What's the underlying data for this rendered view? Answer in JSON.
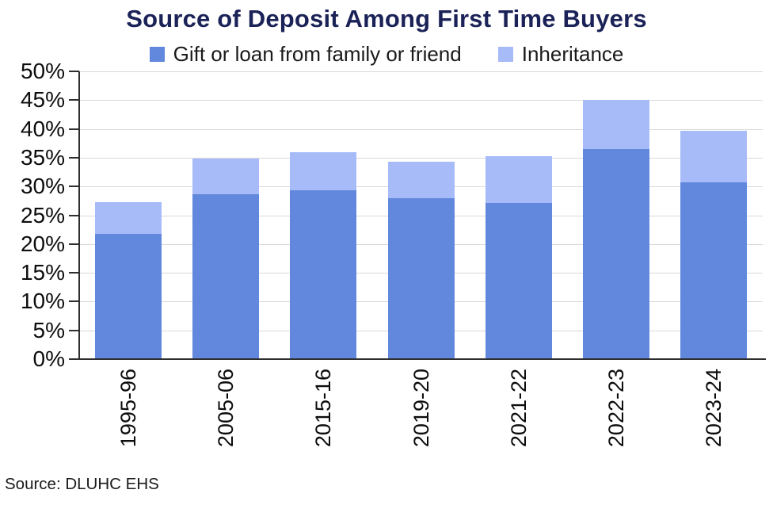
{
  "title": "Source of Deposit Among First Time Buyers",
  "source_note": "Source: DLUHC EHS",
  "colors": {
    "title_text": "#1b2257",
    "axis_line": "#2e2e2e",
    "gridline": "#d9d9d9",
    "tick_text": "#0d0d0d",
    "series_gift_blue": "#6288dd",
    "series_inheritance_blue": "#a7bbf9"
  },
  "chart_data": {
    "type": "bar",
    "stacked": true,
    "title": "Source of Deposit Among First Time Buyers",
    "categories": [
      "1995-96",
      "2005-06",
      "2015-16",
      "2019-20",
      "2021-22",
      "2022-23",
      "2023-24"
    ],
    "series": [
      {
        "name": "Gift or loan from family or friend",
        "color": "#6288dd",
        "values": [
          21.8,
          28.7,
          29.3,
          28.0,
          27.1,
          36.5,
          30.7
        ]
      },
      {
        "name": "Inheritance",
        "color": "#a7bbf9",
        "values": [
          5.5,
          6.1,
          6.7,
          6.3,
          8.2,
          8.5,
          9.0
        ]
      }
    ],
    "stack_totals": [
      27.3,
      34.8,
      36.0,
      34.3,
      35.3,
      45.0,
      39.7
    ],
    "xlabel": "",
    "ylabel": "",
    "ylim": [
      0,
      50
    ],
    "ytick_step": 5,
    "ytick_labels": [
      "0%",
      "5%",
      "10%",
      "15%",
      "20%",
      "25%",
      "30%",
      "35%",
      "40%",
      "45%",
      "50%"
    ],
    "grid": true,
    "legend_position": "top",
    "x_tick_rotation": 90
  }
}
